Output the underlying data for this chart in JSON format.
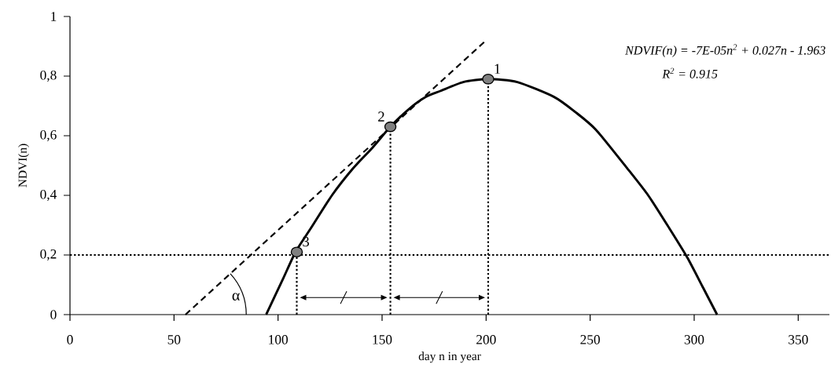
{
  "chart_data": {
    "type": "line",
    "xlabel": "day n in year",
    "ylabel": "NDVI(n)",
    "xlim": [
      0,
      365
    ],
    "ylim": [
      0,
      1
    ],
    "xticks": [
      0,
      50,
      100,
      150,
      200,
      250,
      300,
      350
    ],
    "yticks": [
      0,
      {
        "value": 0.2,
        "label": "0,2"
      },
      {
        "value": 0.4,
        "label": "0,4"
      },
      {
        "value": 0.6,
        "label": "0,6"
      },
      {
        "value": 0.8,
        "label": "0,8"
      },
      1
    ],
    "series": [
      {
        "color": "#000000",
        "line_style": "solid",
        "x": [
          94.3,
          102.4,
          108.4,
          115.8,
          125.9,
          136,
          145.4,
          154,
          163,
          171,
          178,
          189,
          201,
          215,
          232.7,
          242.8,
          252.8,
          267.9,
          277.9,
          288,
          296.8,
          304.3,
          311
        ],
        "values": [
          0,
          0.12,
          0.21,
          0.29,
          0.4,
          0.49,
          0.56,
          0.63,
          0.69,
          0.73,
          0.75,
          0.78,
          0.79,
          0.78,
          0.73,
          0.68,
          0.62,
          0.49,
          0.4,
          0.29,
          0.19,
          0.09,
          0
        ]
      },
      {
        "color": "#000000",
        "line_style": "dashed",
        "x": [
          55.5,
          200
        ],
        "values": [
          0,
          0.92
        ]
      },
      {
        "type": "lollipop",
        "color": "#808080",
        "marker": "circle",
        "line_style": "dotted",
        "x": [
          201,
          154,
          109
        ],
        "values": [
          0.79,
          0.63,
          0.21
        ]
      }
    ],
    "ref_lines": [
      {
        "axis": "y",
        "value": 0.2,
        "line_style": "dotted",
        "color": "#000000"
      }
    ],
    "annotations": [
      "NDVIF(n) = -7E-05n$^{2}$ + 0.027n - 1.963",
      "R$^{2}$ = 0.915",
      {
        "text": "1",
        "x": 201,
        "y": 0.79
      },
      {
        "text": "2",
        "x": 154,
        "y": 0.63
      },
      {
        "text": "3",
        "x": 109,
        "y": 0.21
      },
      "α"
    ]
  }
}
